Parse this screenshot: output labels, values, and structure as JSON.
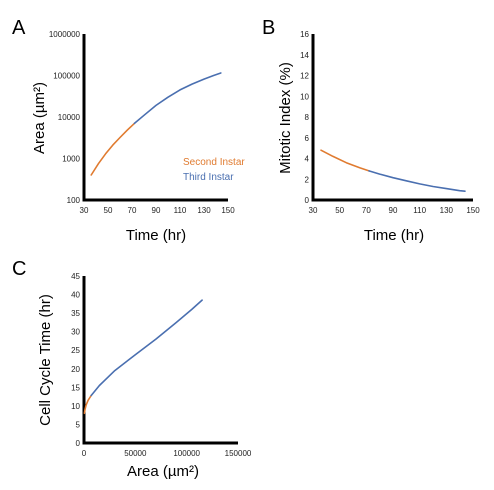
{
  "colors": {
    "second_instar": "#E07B30",
    "third_instar": "#4A6FB0",
    "axis": "#000000"
  },
  "chart_data": [
    {
      "panel": "A",
      "type": "line",
      "xlabel": "Time (hr)",
      "ylabel": "Area (µm²)",
      "y_scale": "log",
      "xlim": [
        30,
        150
      ],
      "ylim": [
        100,
        1000000
      ],
      "x_ticks": [
        "30",
        "50",
        "70",
        "90",
        "110",
        "130",
        "150"
      ],
      "y_ticks": [
        "100",
        "1000",
        "10000",
        "100000",
        "1000000"
      ],
      "legend": [
        "Second Instar",
        "Third Instar"
      ],
      "legend_position": "lower-right",
      "series": [
        {
          "name": "Second Instar",
          "color": "#E07B30",
          "x": [
            36,
            42,
            48,
            54,
            60,
            66,
            72
          ],
          "y": [
            400,
            750,
            1300,
            2100,
            3200,
            4800,
            7000
          ]
        },
        {
          "name": "Third Instar",
          "color": "#4A6FB0",
          "x": [
            72,
            80,
            90,
            100,
            110,
            120,
            130,
            138,
            144
          ],
          "y": [
            7000,
            11000,
            19000,
            30000,
            45000,
            62000,
            82000,
            100000,
            115000
          ]
        }
      ]
    },
    {
      "panel": "B",
      "type": "line",
      "xlabel": "Time (hr)",
      "ylabel": "Mitotic Index (%)",
      "xlim": [
        30,
        150
      ],
      "ylim": [
        0,
        16
      ],
      "x_ticks": [
        "30",
        "50",
        "70",
        "90",
        "110",
        "130",
        "150"
      ],
      "y_ticks": [
        "0",
        "2",
        "4",
        "6",
        "8",
        "10",
        "12",
        "14",
        "16"
      ],
      "series": [
        {
          "name": "Second Instar",
          "color": "#E07B30",
          "x": [
            36,
            45,
            55,
            65,
            72
          ],
          "y": [
            4.8,
            4.2,
            3.6,
            3.1,
            2.8
          ]
        },
        {
          "name": "Third Instar",
          "color": "#4A6FB0",
          "x": [
            72,
            80,
            90,
            100,
            110,
            120,
            130,
            140,
            144
          ],
          "y": [
            2.8,
            2.5,
            2.15,
            1.85,
            1.55,
            1.3,
            1.1,
            0.9,
            0.85
          ]
        }
      ]
    },
    {
      "panel": "C",
      "type": "line",
      "xlabel": "Area (µm²)",
      "ylabel": "Cell Cycle Time (hr)",
      "xlim": [
        0,
        150000
      ],
      "ylim": [
        0,
        45
      ],
      "x_ticks": [
        "0",
        "50000",
        "100000",
        "150000"
      ],
      "y_ticks": [
        "0",
        "5",
        "10",
        "15",
        "20",
        "25",
        "30",
        "35",
        "40",
        "45"
      ],
      "series": [
        {
          "name": "Second Instar",
          "color": "#E07B30",
          "x": [
            400,
            1000,
            2000,
            4000,
            7000
          ],
          "y": [
            8,
            9,
            10.2,
            11.5,
            12.8
          ]
        },
        {
          "name": "Third Instar",
          "color": "#4A6FB0",
          "x": [
            7000,
            15000,
            30000,
            50000,
            70000,
            90000,
            105000,
            115000
          ],
          "y": [
            12.8,
            15.5,
            19.5,
            23.8,
            28,
            32.5,
            36,
            38.5
          ]
        }
      ]
    }
  ]
}
